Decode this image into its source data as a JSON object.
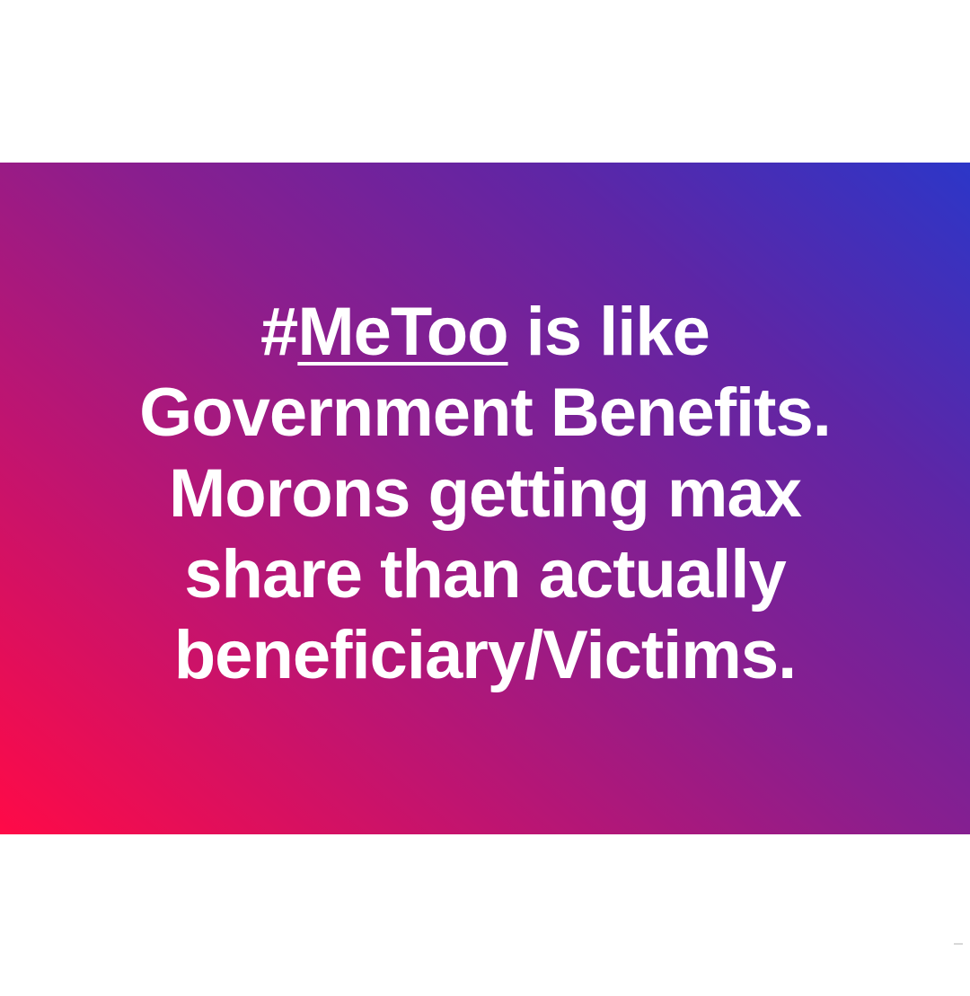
{
  "post": {
    "line1": {
      "hash": "#",
      "hashtag": "MeToo",
      "rest": " is like"
    },
    "line2": "Government Benefits.",
    "line3": "Morons getting max",
    "line4": "share than actually",
    "line5": "beneficiary/Victims."
  },
  "colors": {
    "gradient_start": "#ff0a47",
    "gradient_mid": "#8a1e8e",
    "gradient_end": "#2c36c8",
    "text": "#ffffff",
    "background": "#ffffff"
  }
}
